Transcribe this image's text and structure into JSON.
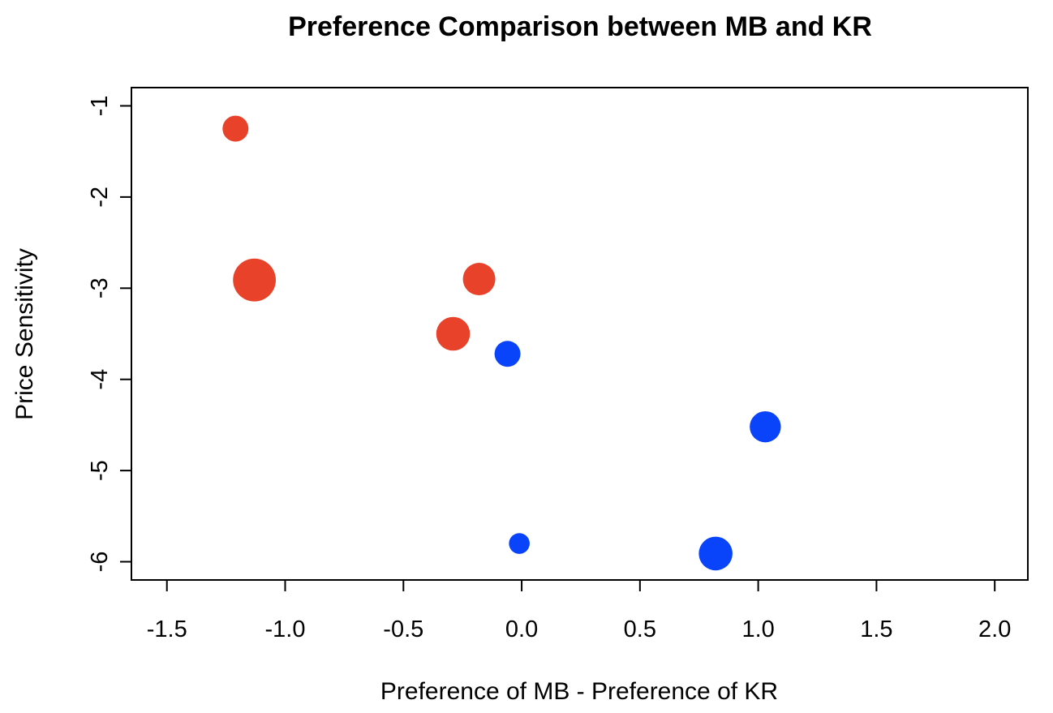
{
  "chart_data": {
    "type": "scatter",
    "title": "Preference Comparison between MB and KR",
    "xlabel": "Preference of MB - Preference of KR",
    "ylabel": "Price Sensitivity",
    "xlim": [
      -1.65,
      2.14
    ],
    "ylim": [
      -6.2,
      -0.8
    ],
    "x_ticks": [
      -1.5,
      -1.0,
      -0.5,
      0.0,
      0.5,
      1.0,
      1.5,
      2.0
    ],
    "x_tick_labels": [
      "-1.5",
      "-1.0",
      "-0.5",
      "0.0",
      "0.5",
      "1.0",
      "1.5",
      "2.0"
    ],
    "y_ticks": [
      -1,
      -2,
      -3,
      -4,
      -5,
      -6
    ],
    "y_tick_labels": [
      "-1",
      "-2",
      "-3",
      "-4",
      "-5",
      "-6"
    ],
    "grid": false,
    "legend": "none",
    "colors": {
      "red": "#E8432A",
      "blue": "#0A44FA"
    },
    "points": [
      {
        "x": -1.21,
        "y": -1.25,
        "color": "red",
        "size": 1.0
      },
      {
        "x": -1.13,
        "y": -2.91,
        "color": "red",
        "size": 1.65
      },
      {
        "x": -0.18,
        "y": -2.9,
        "color": "red",
        "size": 1.25
      },
      {
        "x": -0.29,
        "y": -3.5,
        "color": "red",
        "size": 1.3
      },
      {
        "x": -0.06,
        "y": -3.72,
        "color": "blue",
        "size": 1.0
      },
      {
        "x": 1.03,
        "y": -4.52,
        "color": "blue",
        "size": 1.2
      },
      {
        "x": -0.01,
        "y": -5.8,
        "color": "blue",
        "size": 0.8
      },
      {
        "x": 0.82,
        "y": -5.91,
        "color": "blue",
        "size": 1.3
      }
    ]
  }
}
